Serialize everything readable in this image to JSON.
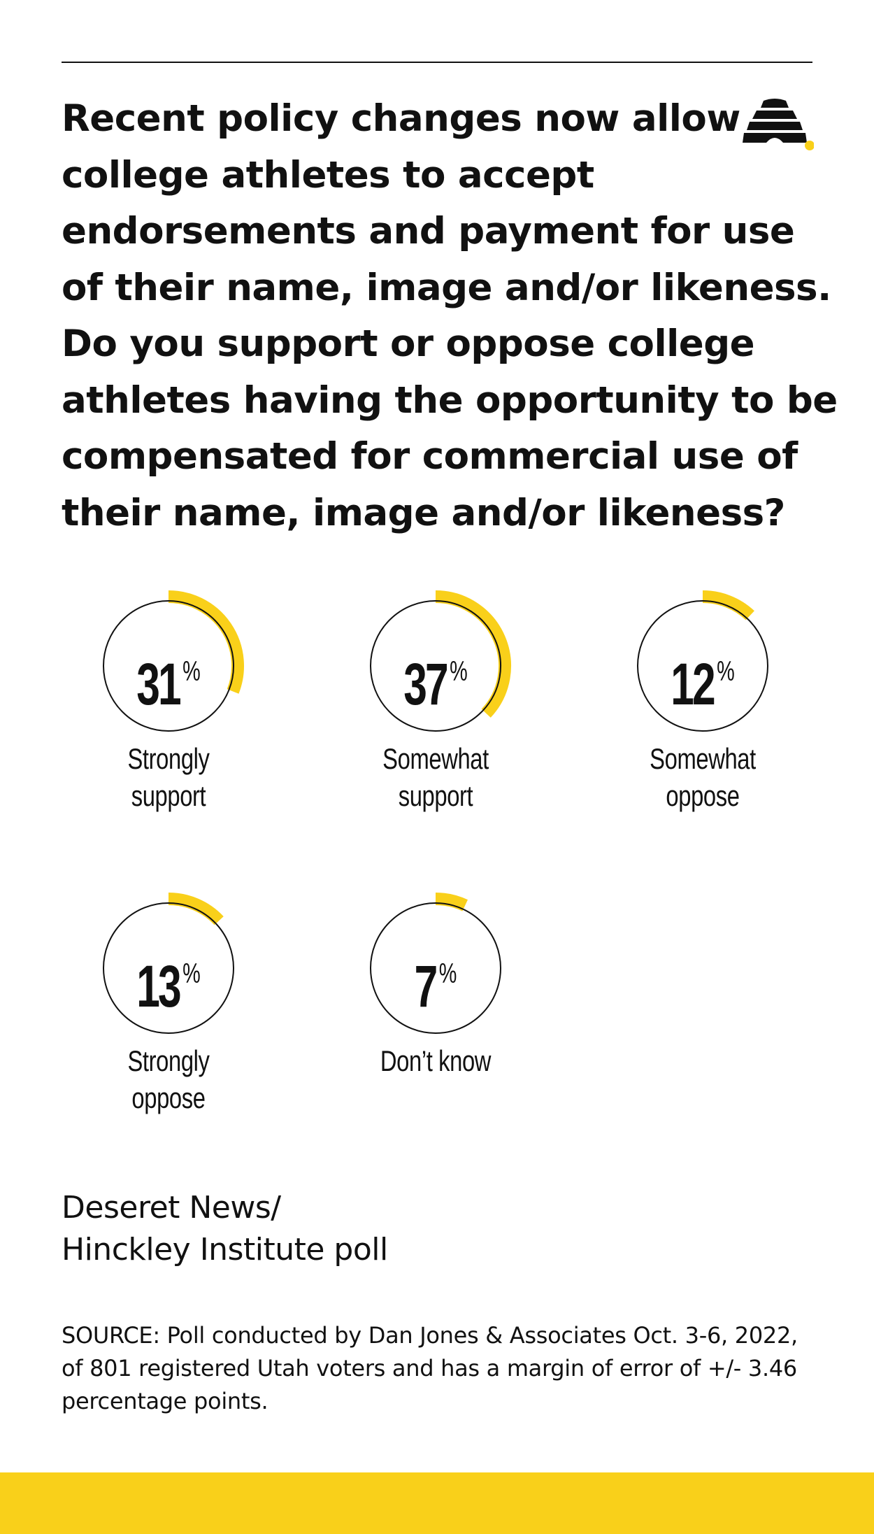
{
  "question": "Recent policy changes now allow college athletes to accept endorsements and payment for use of their name, image and/or likeness. Do you support or oppose college athletes having the opportunity to be compensated for commercial use of their name, image and/or likeness?",
  "colors": {
    "accent": "#f9d01a",
    "ink": "#111111",
    "background": "#ffffff"
  },
  "logo_icon": "beehive-icon",
  "chart_data": {
    "type": "pie",
    "title": "",
    "unit": "%",
    "categories": [
      "Strongly support",
      "Somewhat support",
      "Somewhat oppose",
      "Strongly oppose",
      "Don’t know"
    ],
    "values": [
      31,
      37,
      12,
      13,
      7
    ],
    "labels": [
      "Strongly\nsupport",
      "Somewhat\nsupport",
      "Somewhat\noppose",
      "Strongly\noppose",
      "Don’t know"
    ],
    "value_labels": [
      "31",
      "37",
      "12",
      "13",
      "7"
    ],
    "percent_symbol": "%"
  },
  "poll_name": "Deseret News/\nHinckley Institute poll",
  "source": "SOURCE: Poll conducted by Dan Jones & Associates Oct. 3-6, 2022, of 801 registered Utah voters and has a margin of error of +/- 3.46 percentage points."
}
